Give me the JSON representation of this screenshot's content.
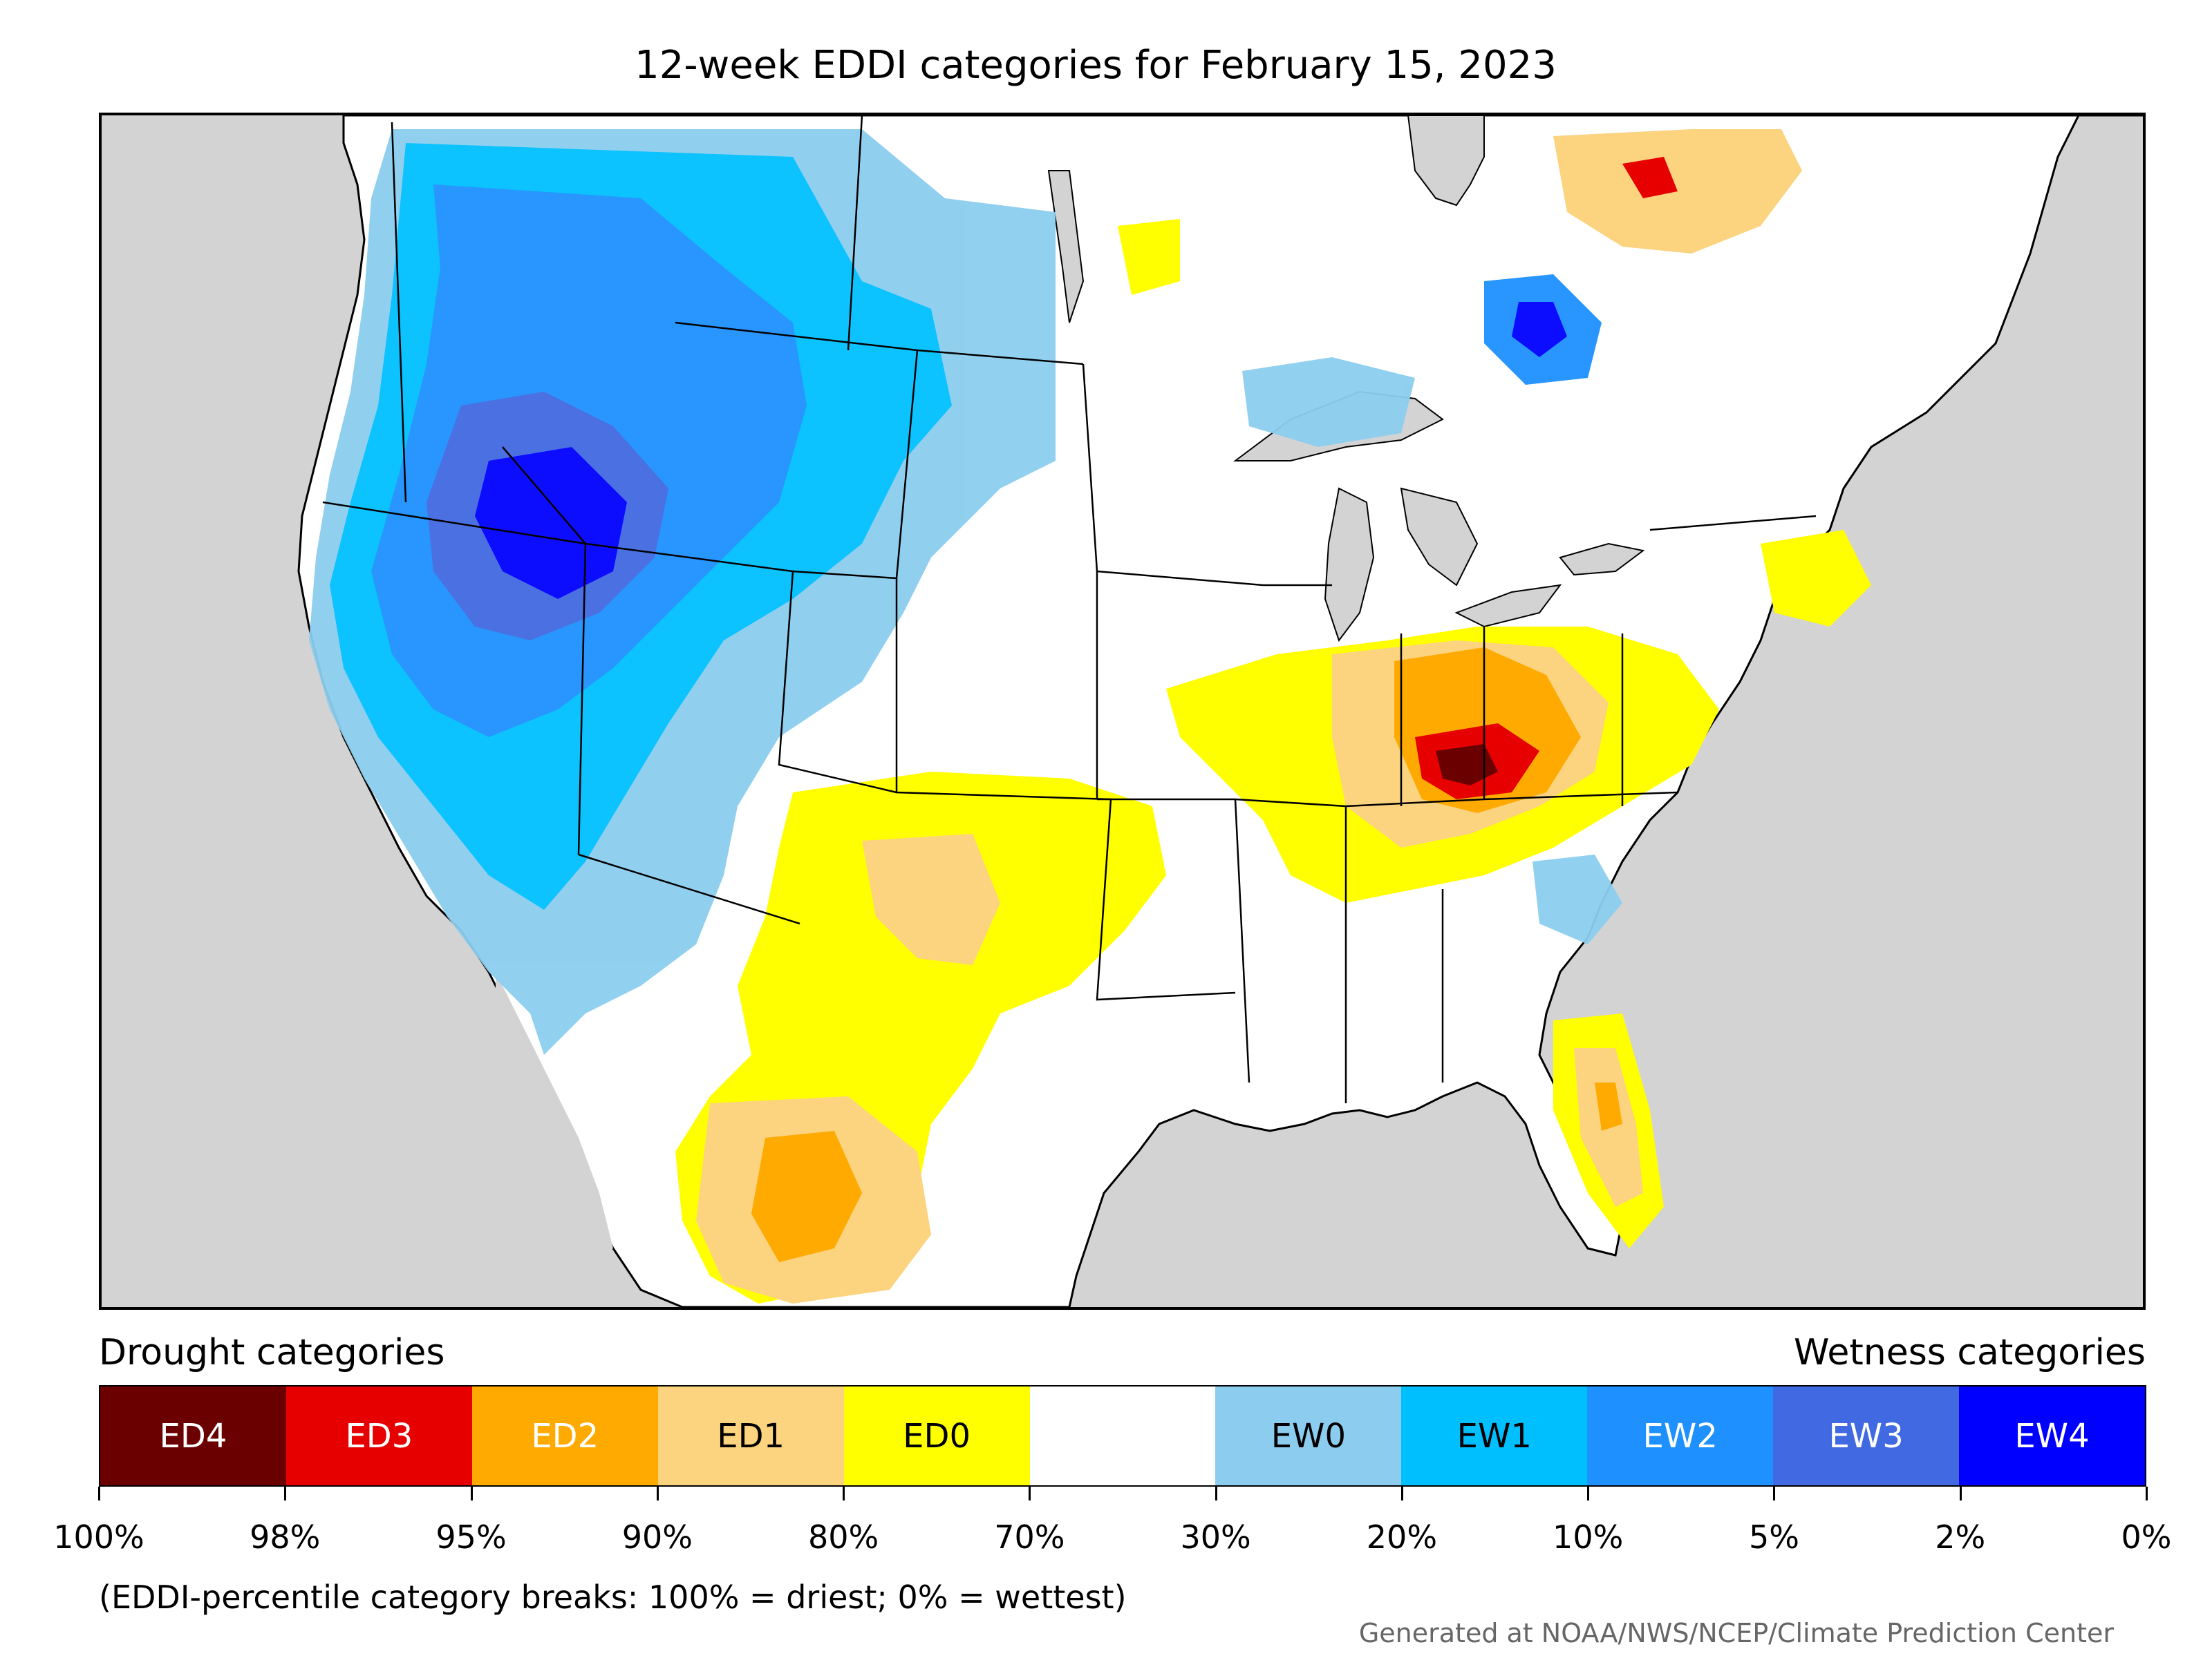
{
  "title": "12-week EDDI categories for February 15, 2023",
  "legend": {
    "drought_heading": "Drought categories",
    "wetness_heading": "Wetness categories",
    "categories": [
      {
        "label": "ED4",
        "color": "#6b0000",
        "text_color": "#ffffff"
      },
      {
        "label": "ED3",
        "color": "#e60000",
        "text_color": "#ffffff"
      },
      {
        "label": "ED2",
        "color": "#ffaa00",
        "text_color": "#ffffff"
      },
      {
        "label": "ED1",
        "color": "#fcd37f",
        "text_color": "#000000"
      },
      {
        "label": "ED0",
        "color": "#ffff00",
        "text_color": "#000000"
      },
      {
        "label": "",
        "color": "#ffffff",
        "text_color": "#000000"
      },
      {
        "label": "EW0",
        "color": "#8ccdef",
        "text_color": "#000000"
      },
      {
        "label": "EW1",
        "color": "#00bfff",
        "text_color": "#000000"
      },
      {
        "label": "EW2",
        "color": "#1e90ff",
        "text_color": "#ffffff"
      },
      {
        "label": "EW3",
        "color": "#4169e1",
        "text_color": "#ffffff"
      },
      {
        "label": "EW4",
        "color": "#0000ff",
        "text_color": "#ffffff"
      }
    ],
    "breaks": [
      "100%",
      "98%",
      "95%",
      "90%",
      "80%",
      "70%",
      "30%",
      "20%",
      "10%",
      "5%",
      "2%",
      "0%"
    ],
    "note": "(EDDI-percentile category breaks: 100% = driest; 0% = wettest)"
  },
  "credit": "Generated at NOAA/NWS/NCEP/Climate Prediction Center",
  "map": {
    "ocean_color": "#d3d3d3",
    "land_color": "#ffffff",
    "border_color": "#000000"
  }
}
